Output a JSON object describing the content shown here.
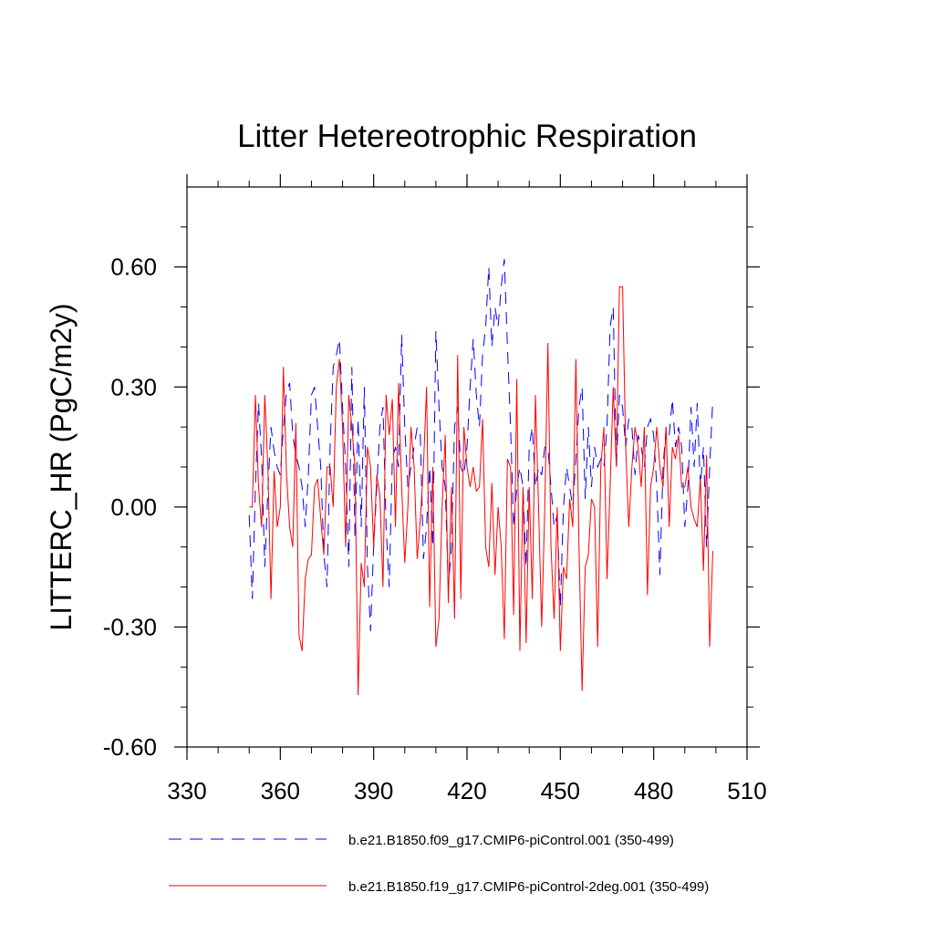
{
  "chart_data": {
    "type": "line",
    "title": "Litter Hetereotrophic Respiration",
    "xlabel": "",
    "ylabel": "LITTERC_HR  (PgC/m2y)",
    "xlim": [
      330,
      510
    ],
    "ylim": [
      -0.6,
      0.8
    ],
    "xticks": [
      330,
      360,
      390,
      420,
      450,
      480,
      510
    ],
    "xtick_labels": [
      "330",
      "360",
      "390",
      "420",
      "450",
      "480",
      "510"
    ],
    "yticks": [
      -0.6,
      -0.3,
      0.0,
      0.3,
      0.6
    ],
    "ytick_labels": [
      "-0.60",
      "-0.30",
      "0.00",
      "0.30",
      "0.60"
    ],
    "grid": false,
    "legend_position": "bottom",
    "x_start": 350,
    "x_step": 1,
    "series": [
      {
        "name": "b.e21.B1850.f09_g17.CMIP6-piControl.001 (350-499)",
        "color": "#0000ff",
        "dash": "dashed",
        "values": [
          -0.02,
          -0.23,
          0.05,
          0.26,
          0.12,
          -0.15,
          0.04,
          0.2,
          0.14,
          0.1,
          0.08,
          0.2,
          0.29,
          0.31,
          0.18,
          0.13,
          0.1,
          0.05,
          -0.05,
          0.08,
          0.28,
          0.3,
          0.2,
          0.1,
          -0.12,
          -0.2,
          0.15,
          0.35,
          0.38,
          0.42,
          0.25,
          0.1,
          -0.15,
          0.35,
          -0.08,
          0.22,
          -0.05,
          0.3,
          -0.15,
          -0.31,
          -0.1,
          0.05,
          0.2,
          0.25,
          -0.05,
          -0.2,
          0.12,
          0.15,
          0.1,
          0.43,
          0.2,
          0.05,
          0.1,
          0.15,
          0.2,
          0.18,
          -0.13,
          -0.05,
          0.1,
          -0.1,
          0.44,
          0.25,
          0.1,
          0.05,
          -0.2,
          -0.1,
          0.2,
          0.25,
          0.1,
          0.08,
          0.15,
          0.3,
          0.42,
          0.28,
          0.2,
          0.38,
          0.45,
          0.6,
          0.4,
          0.5,
          0.45,
          0.55,
          0.62,
          0.4,
          0.2,
          -0.05,
          0.05,
          0.1,
          0.05,
          -0.15,
          0.15,
          0.2,
          0.05,
          0.1,
          0.08,
          0.15,
          0.15,
          0.05,
          -0.05,
          -0.02,
          -0.25,
          0.0,
          0.1,
          0.05,
          0.0,
          0.12,
          0.25,
          0.3,
          0.02,
          0.2,
          0.05,
          0.15,
          0.1,
          0.12,
          0.1,
          0.2,
          0.45,
          0.5,
          0.1,
          0.28,
          0.25,
          0.15,
          0.22,
          0.2,
          0.08,
          0.18,
          0.15,
          0.1,
          0.2,
          0.22,
          0.18,
          0.05,
          -0.17,
          0.1,
          0.2,
          0.18,
          0.27,
          0.15,
          0.2,
          0.15,
          -0.05,
          0.05,
          0.25,
          0.1,
          0.26,
          0.05,
          0.15,
          -0.1,
          0.1,
          0.27
        ]
      },
      {
        "name": "b.e21.B1850.f19_g17.CMIP6-piControl-2deg.001 (350-499)",
        "color": "#ff0000",
        "dash": "solid",
        "values": [
          0.0,
          0.0,
          0.28,
          0.05,
          -0.05,
          0.28,
          0.1,
          -0.23,
          0.09,
          -0.05,
          0.0,
          0.35,
          0.08,
          -0.05,
          -0.1,
          0.21,
          -0.32,
          -0.36,
          -0.18,
          -0.13,
          -0.12,
          0.05,
          0.07,
          -0.03,
          -0.12,
          0.1,
          0.1,
          0.0,
          0.3,
          0.37,
          0.2,
          -0.1,
          0.28,
          0.2,
          0.1,
          -0.47,
          -0.14,
          -0.2,
          0.15,
          0.1,
          -0.1,
          0.08,
          0.03,
          -0.2,
          0.28,
          0.18,
          0.27,
          -0.05,
          0.31,
          0.05,
          -0.14,
          0.0,
          0.2,
          0.1,
          -0.13,
          -0.03,
          0.1,
          0.3,
          -0.25,
          0.1,
          -0.35,
          -0.28,
          0.0,
          0.18,
          -0.24,
          0.05,
          -0.28,
          0.38,
          -0.23,
          0.2,
          0.1,
          0.05,
          0.1,
          0.04,
          0.05,
          0.22,
          -0.1,
          -0.15,
          0.06,
          -0.17,
          0.0,
          -0.1,
          -0.33,
          0.12,
          0.1,
          -0.27,
          0.32,
          -0.36,
          0.05,
          -0.34,
          0.05,
          -0.23,
          0.28,
          0.0,
          -0.3,
          0.0,
          0.41,
          -0.1,
          -0.28,
          0.0,
          -0.36,
          -0.15,
          -0.18,
          0.02,
          -0.05,
          0.37,
          -0.1,
          -0.46,
          -0.15,
          -0.12,
          0.02,
          0.0,
          -0.35,
          0.1,
          0.2,
          -0.18,
          0.05,
          0.3,
          0.1,
          0.55,
          0.55,
          0.15,
          -0.05,
          0.1,
          0.2,
          0.15,
          0.05,
          0.2,
          -0.22,
          0.05,
          0.1,
          0.2,
          0.1,
          0.05,
          0.2,
          -0.05,
          0.15,
          0.12,
          0.18,
          0.05,
          0.05,
          0.1,
          0.0,
          -0.03,
          -0.05,
          0.07,
          -0.16,
          0.13,
          -0.35,
          -0.11
        ]
      }
    ]
  }
}
